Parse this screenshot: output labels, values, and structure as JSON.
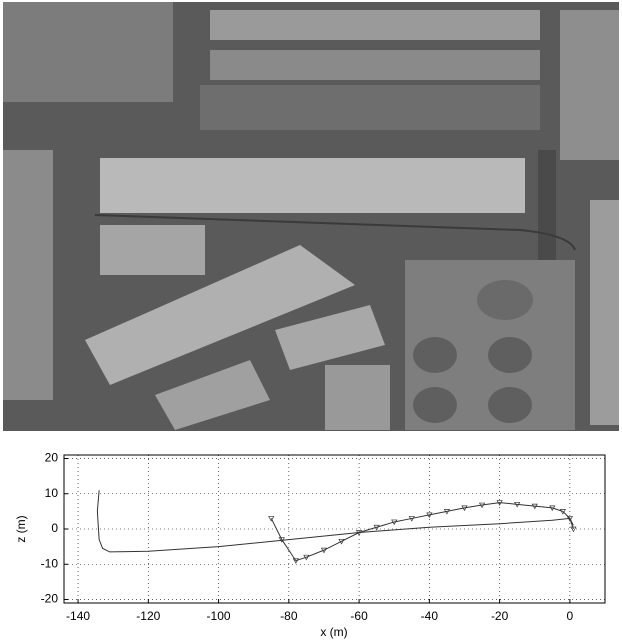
{
  "chart_data": {
    "type": "line",
    "x_label": "x (m)",
    "y_label": "z (m)",
    "xlim": [
      -144,
      10
    ],
    "ylim": [
      -21,
      21
    ],
    "xticks": [
      -140,
      -120,
      -100,
      -80,
      -60,
      -40,
      -20,
      0
    ],
    "yticks": [
      -20,
      -10,
      0,
      10,
      20
    ],
    "grid": true,
    "series": [
      {
        "color": "#333333",
        "marker": "none",
        "x": [
          -134,
          -134.5,
          -134,
          -133,
          -131,
          -120,
          -100,
          -80,
          -60,
          -40,
          -20,
          -5,
          0,
          1
        ],
        "values": [
          11,
          5,
          -3,
          -5.5,
          -6.5,
          -6.3,
          -5,
          -3,
          -1,
          0.5,
          1.5,
          2.5,
          3,
          1
        ]
      },
      {
        "color": "#333333",
        "marker": "triangle",
        "x": [
          -85,
          -82,
          -78,
          -75,
          -70,
          -65,
          -60,
          -55,
          -50,
          -45,
          -40,
          -35,
          -30,
          -25,
          -20,
          -15,
          -10,
          -5,
          -2,
          0,
          1
        ],
        "values": [
          3,
          -3,
          -9,
          -8,
          -6,
          -3.5,
          -1,
          0.5,
          2,
          3,
          4,
          5,
          6,
          6.8,
          7.5,
          7,
          6.5,
          6,
          5,
          3,
          0
        ]
      }
    ]
  }
}
